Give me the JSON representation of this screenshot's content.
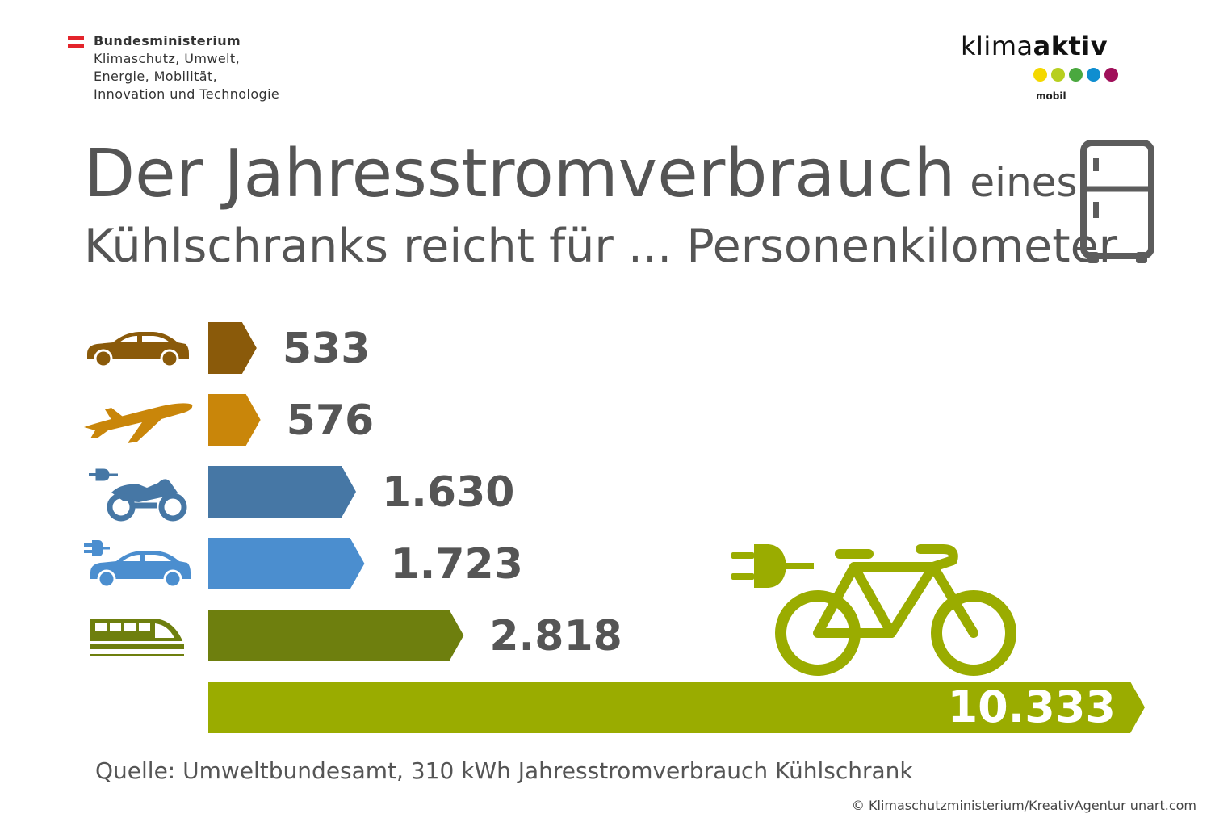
{
  "ministry": {
    "lines": [
      "Bundesministerium",
      "Klimaschutz, Umwelt,",
      "Energie, Mobilität,",
      "Innovation und Technologie"
    ],
    "flag_colors": [
      "#e3242b",
      "#ffffff",
      "#e3242b"
    ]
  },
  "logo": {
    "word_light": "klima",
    "word_bold": "aktiv",
    "subtitle": "mobil",
    "dot_colors": [
      "#f4d800",
      "#b7cf1f",
      "#4aa83f",
      "#0f8ed0",
      "#a0105a"
    ]
  },
  "title": {
    "line1_big": "Der Jahresstromverbrauch",
    "line1_small": "eines",
    "line2": "Kühlschranks reicht für ... Personenkilometer"
  },
  "fridge_icon": "fridge-icon",
  "chart_data": {
    "type": "bar",
    "orientation": "horizontal",
    "unit": "Personenkilometer",
    "categories": [
      "Auto",
      "Flugzeug",
      "E-Motorrad",
      "E-Auto",
      "Zug",
      "E-Bike"
    ],
    "values": [
      533,
      576,
      1630,
      1723,
      2818,
      10333
    ],
    "labels": [
      "533",
      "576",
      "1.630",
      "1.723",
      "2.818",
      "10.333"
    ],
    "icons": [
      "car-icon",
      "airplane-icon",
      "electric-motorcycle-icon",
      "electric-car-icon",
      "train-icon",
      "electric-bicycle-icon"
    ],
    "colors": [
      "#8a5a0a",
      "#c9860a",
      "#4677a5",
      "#4b8ecf",
      "#6e7f0e",
      "#9aac00"
    ],
    "xlim": [
      0,
      10333
    ],
    "legend": "none",
    "grid": false
  },
  "footer": {
    "source": "Quelle: Umweltbundesamt, 310 kWh Jahresstromverbrauch Kühlschrank",
    "copyright": "© Klimaschutzministerium/KreativAgentur unart.com"
  }
}
